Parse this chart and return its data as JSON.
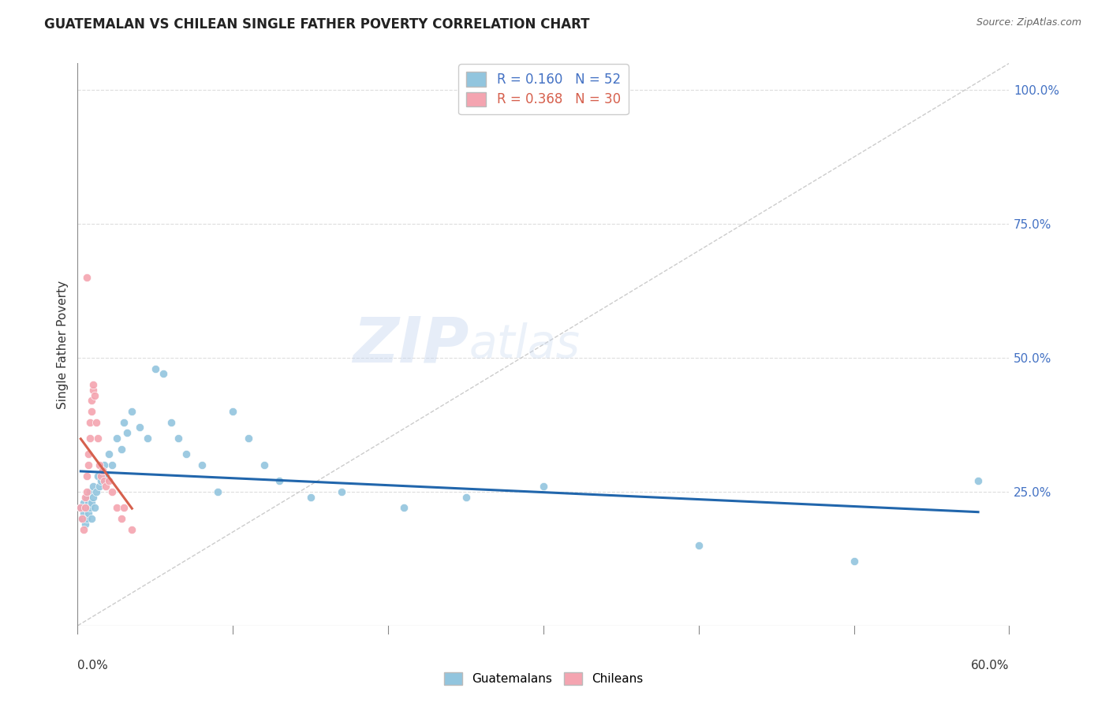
{
  "title": "GUATEMALAN VS CHILEAN SINGLE FATHER POVERTY CORRELATION CHART",
  "source": "Source: ZipAtlas.com",
  "ylabel": "Single Father Poverty",
  "right_yticks": [
    0.0,
    0.25,
    0.5,
    0.75,
    1.0
  ],
  "right_yticklabels": [
    "",
    "25.0%",
    "50.0%",
    "75.0%",
    "100.0%"
  ],
  "xlim": [
    0.0,
    0.6
  ],
  "ylim": [
    0.0,
    1.05
  ],
  "watermark_zip": "ZIP",
  "watermark_atlas": "atlas",
  "legend_blue_r": "0.160",
  "legend_blue_n": "52",
  "legend_pink_r": "0.368",
  "legend_pink_n": "30",
  "blue_color": "#92c5de",
  "pink_color": "#f4a4b0",
  "blue_line_color": "#2166ac",
  "pink_line_color": "#d6604d",
  "background_color": "#ffffff",
  "grid_color": "#dddddd",
  "guatemalan_x": [
    0.002,
    0.003,
    0.004,
    0.004,
    0.005,
    0.005,
    0.006,
    0.006,
    0.007,
    0.007,
    0.008,
    0.008,
    0.009,
    0.009,
    0.01,
    0.01,
    0.011,
    0.012,
    0.013,
    0.014,
    0.015,
    0.016,
    0.017,
    0.018,
    0.02,
    0.022,
    0.025,
    0.028,
    0.03,
    0.032,
    0.035,
    0.04,
    0.045,
    0.05,
    0.055,
    0.06,
    0.065,
    0.07,
    0.08,
    0.09,
    0.1,
    0.11,
    0.12,
    0.13,
    0.15,
    0.17,
    0.21,
    0.25,
    0.3,
    0.4,
    0.5,
    0.58
  ],
  "guatemalan_y": [
    0.22,
    0.2,
    0.21,
    0.23,
    0.19,
    0.22,
    0.2,
    0.24,
    0.21,
    0.23,
    0.22,
    0.25,
    0.2,
    0.23,
    0.24,
    0.26,
    0.22,
    0.25,
    0.28,
    0.26,
    0.27,
    0.29,
    0.3,
    0.28,
    0.32,
    0.3,
    0.35,
    0.33,
    0.38,
    0.36,
    0.4,
    0.37,
    0.35,
    0.48,
    0.47,
    0.38,
    0.35,
    0.32,
    0.3,
    0.25,
    0.4,
    0.35,
    0.3,
    0.27,
    0.24,
    0.25,
    0.22,
    0.24,
    0.26,
    0.15,
    0.12,
    0.27
  ],
  "chilean_x": [
    0.002,
    0.003,
    0.004,
    0.005,
    0.005,
    0.006,
    0.006,
    0.007,
    0.007,
    0.008,
    0.008,
    0.009,
    0.009,
    0.01,
    0.01,
    0.011,
    0.012,
    0.013,
    0.014,
    0.015,
    0.016,
    0.017,
    0.018,
    0.02,
    0.022,
    0.025,
    0.028,
    0.03,
    0.035,
    0.006
  ],
  "chilean_y": [
    0.22,
    0.2,
    0.18,
    0.22,
    0.24,
    0.25,
    0.28,
    0.3,
    0.32,
    0.35,
    0.38,
    0.4,
    0.42,
    0.44,
    0.45,
    0.43,
    0.38,
    0.35,
    0.3,
    0.28,
    0.29,
    0.27,
    0.26,
    0.27,
    0.25,
    0.22,
    0.2,
    0.22,
    0.18,
    0.65
  ]
}
